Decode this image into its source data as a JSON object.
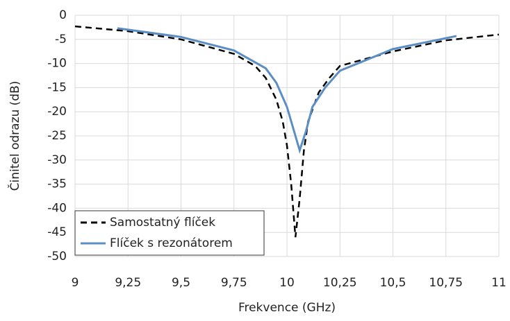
{
  "chart_data": {
    "type": "line",
    "x_label": "Frekvence (GHz)",
    "y_label": "Činitel odrazu (dB)",
    "xlim": [
      9,
      11
    ],
    "xticks": [
      9,
      {
        "value": 9.25,
        "label": "9,25"
      },
      {
        "value": 9.5,
        "label": "9,5"
      },
      {
        "value": 9.75,
        "label": "9,75"
      },
      10,
      {
        "value": 10.25,
        "label": "10,25"
      },
      {
        "value": 10.5,
        "label": "10,5"
      },
      {
        "value": 10.75,
        "label": "10,75"
      },
      11
    ],
    "ylim": [
      -50,
      0
    ],
    "yticks": [
      0,
      -5,
      -10,
      -15,
      -20,
      -25,
      -30,
      -35,
      -40,
      -45,
      -50
    ],
    "grid": true,
    "legend": "lower left",
    "series": [
      {
        "name": "Samostatný flíček",
        "color": "#000000",
        "dash": true,
        "x": [
          9.0,
          9.25,
          9.5,
          9.75,
          9.85,
          9.9,
          9.95,
          9.98,
          10.0,
          10.02,
          10.04,
          10.06,
          10.08,
          10.1,
          10.15,
          10.2,
          10.25,
          10.5,
          10.75,
          11.0
        ],
        "values": [
          -2.3,
          -3.3,
          -5.0,
          -8.0,
          -10.5,
          -13,
          -17.5,
          -22,
          -27,
          -35,
          -46,
          -38,
          -28,
          -22,
          -16,
          -13,
          -10.5,
          -7.5,
          -5.2,
          -4.0
        ]
      },
      {
        "name": "Flíček s rezonátorem",
        "color": "#5b8ec4",
        "dash": false,
        "x": [
          9.2,
          9.5,
          9.75,
          9.9,
          9.95,
          10.0,
          10.03,
          10.06,
          10.09,
          10.12,
          10.18,
          10.25,
          10.5,
          10.8
        ],
        "values": [
          -2.7,
          -4.5,
          -7.3,
          -11,
          -14,
          -19,
          -23.5,
          -28,
          -24,
          -19,
          -15,
          -11.5,
          -7,
          -4.3
        ]
      }
    ]
  }
}
